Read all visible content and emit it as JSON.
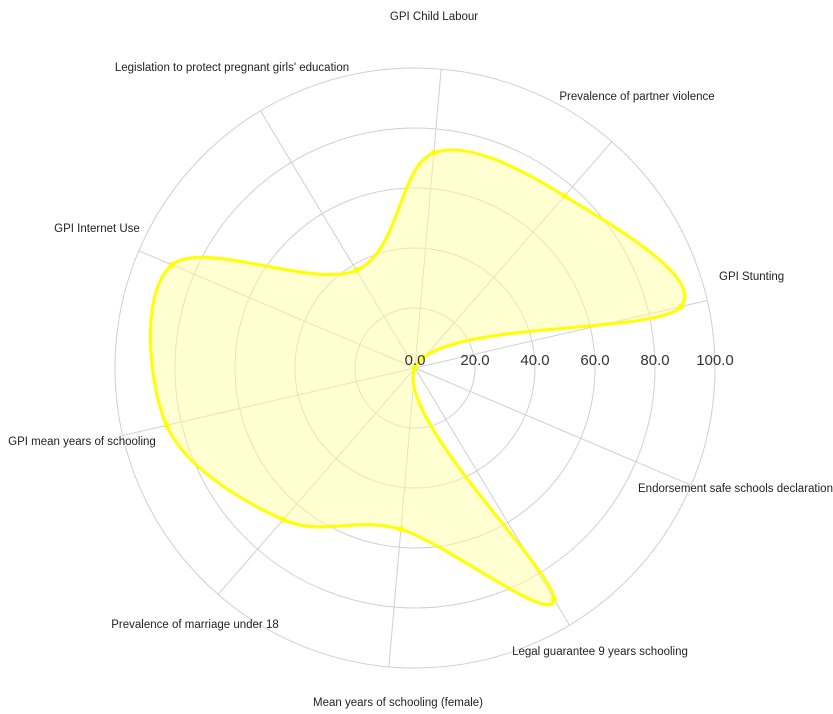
{
  "chart_data": {
    "type": "radar",
    "axes": [
      "GPI Child Labour",
      "Prevalence of partner violence",
      "GPI Stunting",
      "Endorsement safe schools declaration",
      "Legal guarantee 9 years schooling",
      "Mean years of schooling (female)",
      "Prevalence of marriage under 18",
      "GPI mean years of schooling",
      "GPI Internet Use",
      "Legislation to protect pregnant girls' education"
    ],
    "ticks": [
      "0.0",
      "20.0",
      "40.0",
      "60.0",
      "80.0",
      "100.0"
    ],
    "range": [
      0,
      100
    ],
    "series": [
      {
        "values": [
          72,
          76,
          91,
          0,
          90,
          54,
          67,
          85,
          88,
          38
        ]
      }
    ],
    "colors": {
      "stroke": "#FFFF00",
      "fill": "#FFFF99",
      "grid": "#d0d0d0"
    },
    "curve": "smooth"
  }
}
